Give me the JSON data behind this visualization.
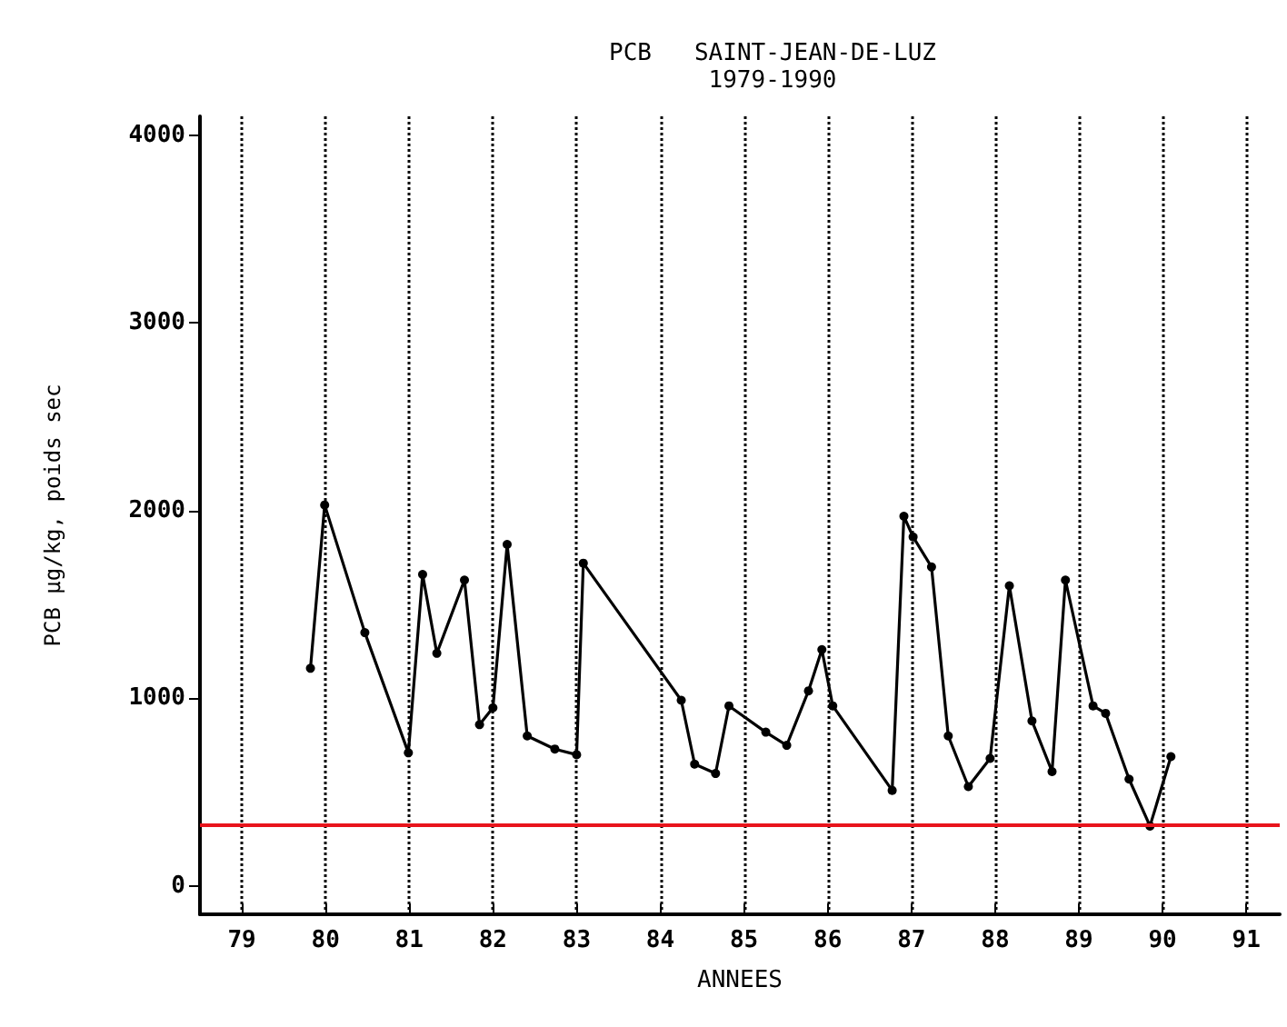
{
  "chart_data": {
    "type": "line",
    "title": "PCB   SAINT-JEAN-DE-LUZ",
    "subtitle": "1979-1990",
    "xlabel": "ANNEES",
    "ylabel": "PCB µg/kg, poids sec",
    "x": [
      79.82,
      79.99,
      80.47,
      80.99,
      81.16,
      81.33,
      81.66,
      81.84,
      82.0,
      82.17,
      82.41,
      82.74,
      83.0,
      83.08,
      84.25,
      84.41,
      84.66,
      84.82,
      85.26,
      85.51,
      85.77,
      85.93,
      86.06,
      86.77,
      86.91,
      87.02,
      87.24,
      87.44,
      87.68,
      87.94,
      88.17,
      88.44,
      88.68,
      88.84,
      89.17,
      89.32,
      89.6,
      89.85,
      90.1
    ],
    "series": [
      {
        "color": "#000000",
        "values": [
          1160,
          2030,
          1350,
          710,
          1660,
          1240,
          1630,
          860,
          950,
          1820,
          800,
          730,
          700,
          1720,
          990,
          650,
          600,
          960,
          820,
          750,
          1040,
          1260,
          960,
          510,
          1970,
          1860,
          1700,
          800,
          530,
          680,
          1600,
          880,
          610,
          1630,
          960,
          920,
          570,
          320,
          690
        ]
      }
    ],
    "xlim": [
      78.5,
      91.4
    ],
    "xticks": [
      79,
      80,
      81,
      82,
      83,
      84,
      85,
      86,
      87,
      88,
      89,
      90,
      91
    ],
    "ylim": [
      -150,
      4100
    ],
    "yticks": [
      0,
      1000,
      2000,
      3000,
      4000
    ],
    "grid": "x",
    "marker": "circle",
    "line_style": "solid",
    "ref_lines": [
      {
        "axis": "y",
        "value": 330,
        "color": "#e8141c"
      }
    ]
  }
}
